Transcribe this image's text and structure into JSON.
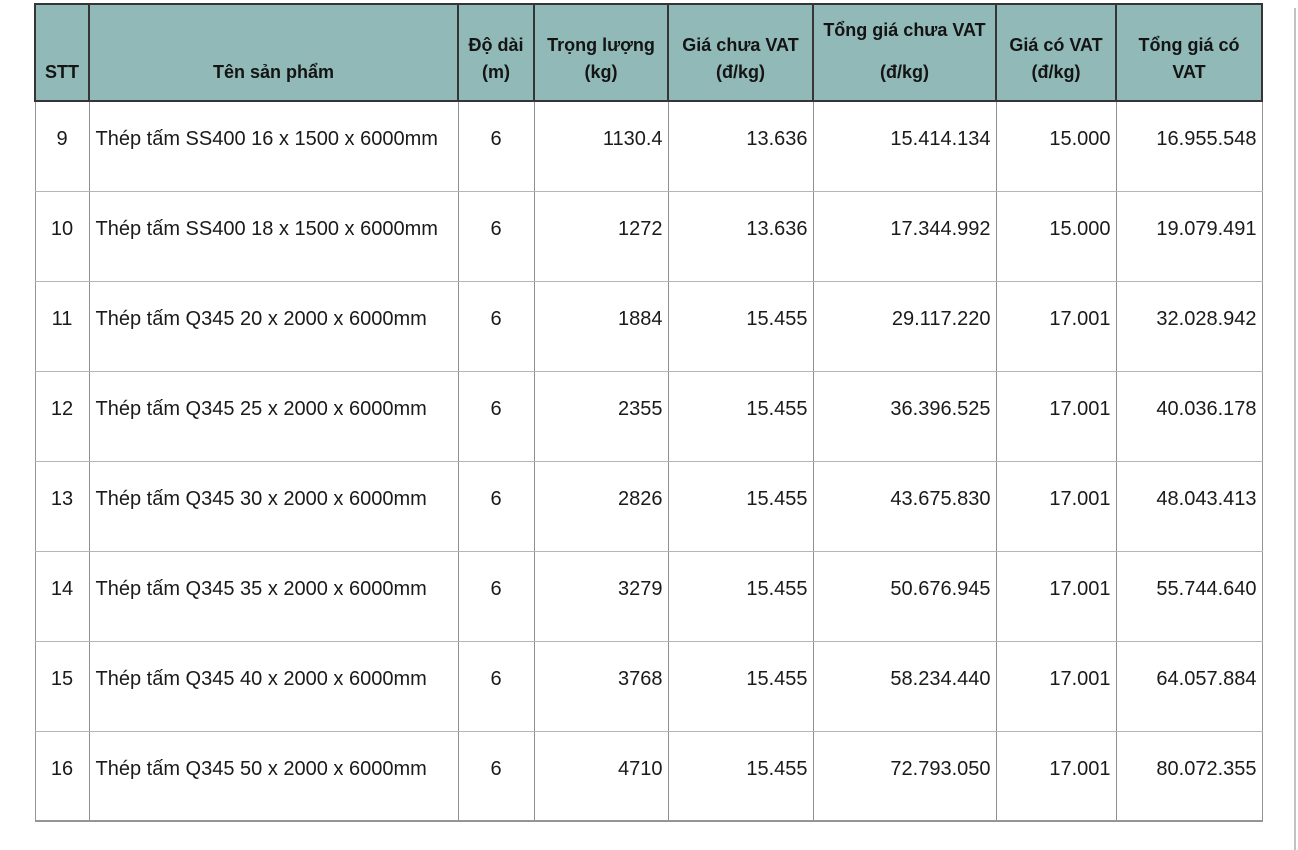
{
  "table": {
    "columns": [
      {
        "key": "stt",
        "lines": [
          "STT"
        ],
        "tall": false
      },
      {
        "key": "name",
        "lines": [
          "Tên sản phẩm"
        ],
        "tall": false
      },
      {
        "key": "length",
        "lines": [
          "Độ dài",
          "(m)"
        ],
        "tall": false
      },
      {
        "key": "weight",
        "lines": [
          "Trọng lượng",
          "(kg)"
        ],
        "tall": false
      },
      {
        "key": "price_no_vat",
        "lines": [
          "Giá chưa VAT",
          "(đ/kg)"
        ],
        "tall": false
      },
      {
        "key": "total_no_vat",
        "lines": [
          "Tổng giá chưa VAT",
          "(đ/kg)"
        ],
        "tall": true
      },
      {
        "key": "price_vat",
        "lines": [
          "Giá có VAT",
          "(đ/kg)"
        ],
        "tall": false
      },
      {
        "key": "total_vat",
        "lines": [
          "Tổng giá có",
          "VAT"
        ],
        "tall": false
      }
    ],
    "rows": [
      {
        "stt": "9",
        "name": "Thép tấm SS400 16 x 1500 x 6000mm",
        "length": "6",
        "weight": "1130.4",
        "price_no_vat": "13.636",
        "total_no_vat": "15.414.134",
        "price_vat": "15.000",
        "total_vat": "16.955.548"
      },
      {
        "stt": "10",
        "name": "Thép tấm SS400 18 x 1500 x 6000mm",
        "length": "6",
        "weight": "1272",
        "price_no_vat": "13.636",
        "total_no_vat": "17.344.992",
        "price_vat": "15.000",
        "total_vat": "19.079.491"
      },
      {
        "stt": "11",
        "name": "Thép tấm Q345 20 x 2000 x 6000mm",
        "length": "6",
        "weight": "1884",
        "price_no_vat": "15.455",
        "total_no_vat": "29.117.220",
        "price_vat": "17.001",
        "total_vat": "32.028.942"
      },
      {
        "stt": "12",
        "name": "Thép tấm Q345 25 x 2000 x 6000mm",
        "length": "6",
        "weight": "2355",
        "price_no_vat": "15.455",
        "total_no_vat": "36.396.525",
        "price_vat": "17.001",
        "total_vat": "40.036.178"
      },
      {
        "stt": "13",
        "name": "Thép tấm Q345 30 x 2000 x 6000mm",
        "length": "6",
        "weight": "2826",
        "price_no_vat": "15.455",
        "total_no_vat": "43.675.830",
        "price_vat": "17.001",
        "total_vat": "48.043.413"
      },
      {
        "stt": "14",
        "name": "Thép tấm Q345 35 x 2000 x 6000mm",
        "length": "6",
        "weight": "3279",
        "price_no_vat": "15.455",
        "total_no_vat": "50.676.945",
        "price_vat": "17.001",
        "total_vat": "55.744.640"
      },
      {
        "stt": "15",
        "name": "Thép tấm Q345 40 x 2000 x 6000mm",
        "length": "6",
        "weight": "3768",
        "price_no_vat": "15.455",
        "total_no_vat": "58.234.440",
        "price_vat": "17.001",
        "total_vat": "64.057.884"
      },
      {
        "stt": "16",
        "name": "Thép tấm Q345 50 x 2000 x 6000mm",
        "length": "6",
        "weight": "4710",
        "price_no_vat": "15.455",
        "total_no_vat": "72.793.050",
        "price_vat": "17.001",
        "total_vat": "80.072.355"
      }
    ],
    "colors": {
      "header_bg": "#90b9b7",
      "header_border": "#353535",
      "grid_vertical": "#8f8f8f",
      "grid_horizontal": "#b5b5b5",
      "outer_border": "#959595",
      "page_bg": "#ffffff"
    }
  }
}
